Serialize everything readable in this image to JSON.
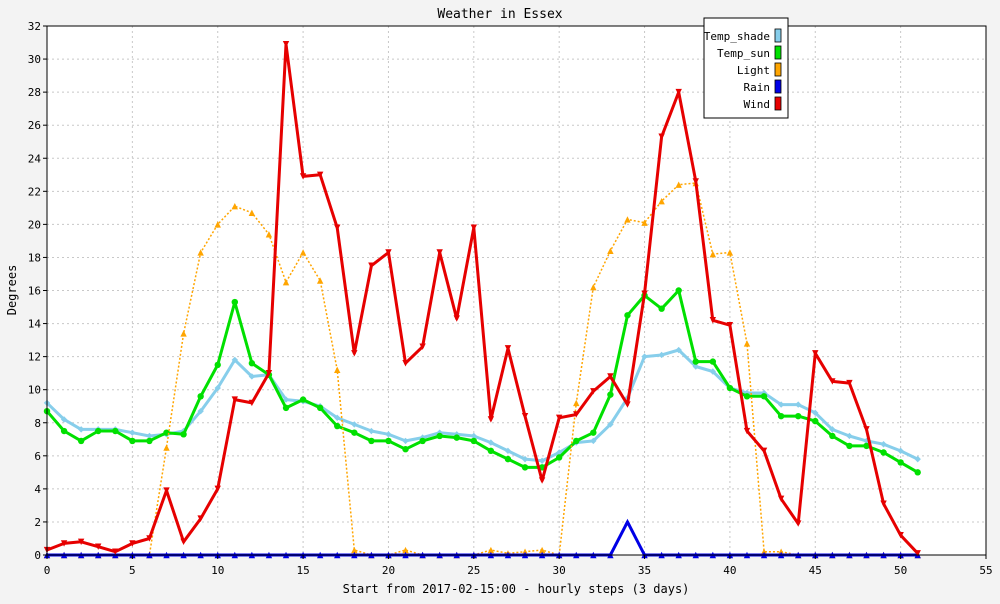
{
  "chart_data": {
    "type": "line",
    "title": "Weather in Essex",
    "xlabel": "Start from 2017-02-15:00 - hourly steps (3 days)",
    "ylabel": "Degrees",
    "xlim": [
      0,
      55
    ],
    "ylim": [
      0,
      32
    ],
    "xticks": [
      0,
      5,
      10,
      15,
      20,
      25,
      30,
      35,
      40,
      45,
      50,
      55
    ],
    "yticks": [
      0,
      2,
      4,
      6,
      8,
      10,
      12,
      14,
      16,
      18,
      20,
      22,
      24,
      26,
      28,
      30,
      32
    ],
    "grid": true,
    "legend_position": "top-right",
    "x": [
      0,
      1,
      2,
      3,
      4,
      5,
      6,
      7,
      8,
      9,
      10,
      11,
      12,
      13,
      14,
      15,
      16,
      17,
      18,
      19,
      20,
      21,
      22,
      23,
      24,
      25,
      26,
      27,
      28,
      29,
      30,
      31,
      32,
      33,
      34,
      35,
      36,
      37,
      38,
      39,
      40,
      41,
      42,
      43,
      44,
      45,
      46,
      47,
      48,
      49,
      50,
      51
    ],
    "series": [
      {
        "name": "Temp_shade",
        "color": "#87ceeb",
        "marker": "diamond",
        "dashed": false,
        "values": [
          9.2,
          8.2,
          7.6,
          7.6,
          7.6,
          7.4,
          7.2,
          7.3,
          7.5,
          8.7,
          10.1,
          11.8,
          10.8,
          10.9,
          9.4,
          9.3,
          9.0,
          8.3,
          7.9,
          7.5,
          7.3,
          6.9,
          7.1,
          7.4,
          7.3,
          7.2,
          6.8,
          6.3,
          5.8,
          5.7,
          6.2,
          6.8,
          6.9,
          7.9,
          9.5,
          12.0,
          12.1,
          12.4,
          11.4,
          11.1,
          10.1,
          9.8,
          9.8,
          9.1,
          9.1,
          8.6,
          7.6,
          7.2,
          6.9,
          6.7,
          6.3,
          5.8
        ]
      },
      {
        "name": "Temp_sun",
        "color": "#00e000",
        "marker": "circle",
        "dashed": false,
        "values": [
          8.7,
          7.5,
          6.9,
          7.5,
          7.5,
          6.9,
          6.9,
          7.4,
          7.3,
          9.6,
          11.5,
          15.3,
          11.6,
          10.9,
          8.9,
          9.4,
          8.9,
          7.8,
          7.4,
          6.9,
          6.9,
          6.4,
          6.9,
          7.2,
          7.1,
          6.9,
          6.3,
          5.8,
          5.3,
          5.3,
          5.9,
          6.9,
          7.4,
          9.7,
          14.5,
          15.7,
          14.9,
          16.0,
          11.7,
          11.7,
          10.1,
          9.6,
          9.6,
          8.4,
          8.4,
          8.1,
          7.2,
          6.6,
          6.6,
          6.2,
          5.6,
          5.0
        ]
      },
      {
        "name": "Light",
        "color": "#ffa500",
        "marker": "triangle-up",
        "dashed": true,
        "values": [
          0,
          0,
          0,
          0,
          0,
          0,
          0,
          6.5,
          13.4,
          18.3,
          20.0,
          21.1,
          20.7,
          19.4,
          16.5,
          18.3,
          16.6,
          11.2,
          0.3,
          0,
          0,
          0.3,
          0,
          0,
          0,
          0,
          0.3,
          0.1,
          0.2,
          0.3,
          0,
          9.2,
          16.2,
          18.4,
          20.3,
          20.1,
          21.4,
          22.4,
          22.5,
          18.2,
          18.3,
          12.8,
          0.2,
          0.2,
          0,
          0,
          0,
          0,
          0,
          0,
          0,
          0
        ]
      },
      {
        "name": "Rain",
        "color": "#0000e6",
        "marker": "triangle-up",
        "dashed": false,
        "values": [
          0,
          0,
          0,
          0,
          0,
          0,
          0,
          0,
          0,
          0,
          0,
          0,
          0,
          0,
          0,
          0,
          0,
          0,
          0,
          0,
          0,
          0,
          0,
          0,
          0,
          0,
          0,
          0,
          0,
          0,
          0,
          0,
          0,
          0,
          2,
          0,
          0,
          0,
          0,
          0,
          0,
          0,
          0,
          0,
          0,
          0,
          0,
          0,
          0,
          0,
          0,
          0
        ]
      },
      {
        "name": "Wind",
        "color": "#e60000",
        "marker": "triangle-down",
        "dashed": false,
        "values": [
          0.3,
          0.7,
          0.8,
          0.5,
          0.2,
          0.7,
          1.0,
          3.9,
          0.8,
          2.2,
          4.0,
          9.4,
          9.2,
          11.0,
          30.9,
          22.9,
          23.0,
          19.8,
          12.2,
          17.5,
          18.3,
          11.6,
          12.6,
          18.3,
          14.3,
          19.8,
          8.2,
          12.5,
          8.4,
          4.5,
          8.3,
          8.5,
          9.9,
          10.8,
          9.1,
          15.8,
          25.3,
          28.0,
          22.6,
          14.2,
          13.9,
          7.5,
          6.3,
          3.4,
          1.9,
          12.2,
          10.5,
          10.4,
          7.6,
          3.1,
          1.2,
          0.1
        ]
      }
    ]
  }
}
